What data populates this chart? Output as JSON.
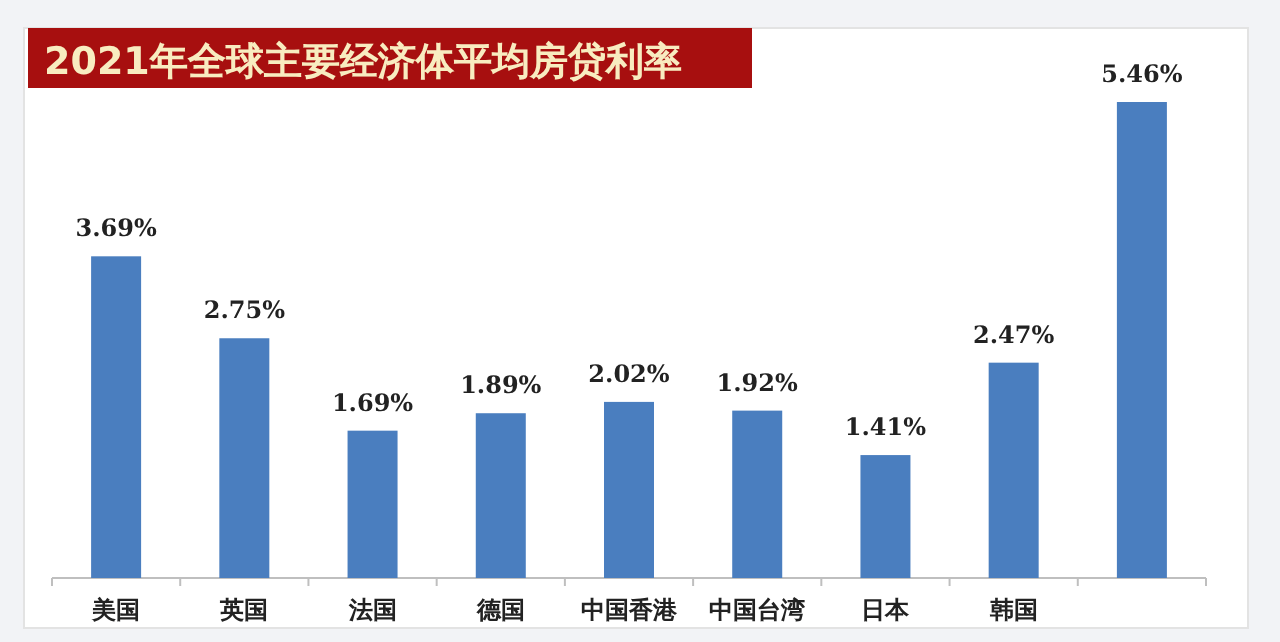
{
  "chart_data": {
    "type": "bar",
    "title": "2021年全球主要经济体平均房贷利率",
    "categories": [
      "美国",
      "英国",
      "法国",
      "德国",
      "中国香港",
      "中国台湾",
      "日本",
      "韩国",
      null
    ],
    "values": [
      3.69,
      2.75,
      1.69,
      1.89,
      2.02,
      1.92,
      1.41,
      2.47,
      5.46
    ],
    "value_labels": [
      "3.69%",
      "2.75%",
      "1.69%",
      "1.89%",
      "2.02%",
      "1.92%",
      "1.41%",
      "2.47%",
      "5.46%"
    ],
    "color": "#4a7ebf"
  }
}
